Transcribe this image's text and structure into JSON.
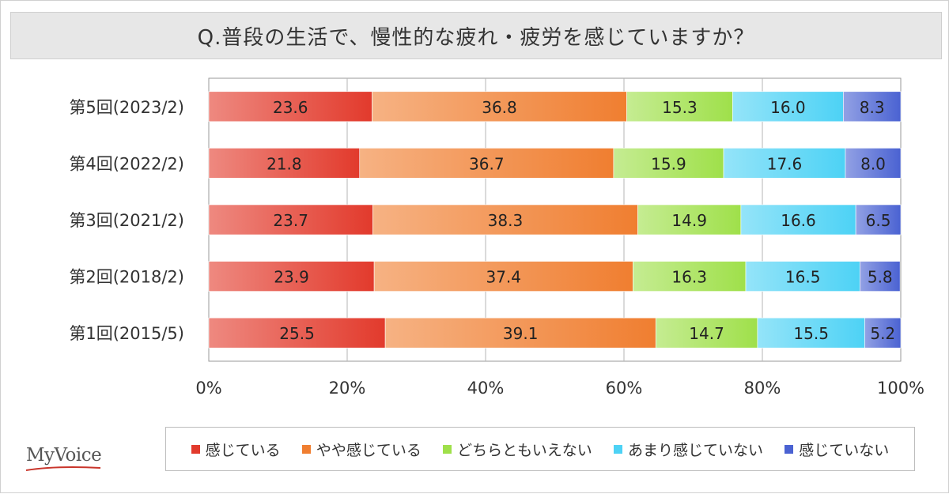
{
  "title": "Q.普段の生活で、慢性的な疲れ・疲労を感じていますか？",
  "logo_text": "MyVoice",
  "chart_data": {
    "type": "bar",
    "orientation": "horizontal",
    "stacked": "percent",
    "categories": [
      "第5回(2023/2)",
      "第4回(2022/2)",
      "第3回(2021/2)",
      "第2回(2018/2)",
      "第1回(2015/5)"
    ],
    "series": [
      {
        "name": "感じている",
        "color": "#e23a2c",
        "values": [
          23.6,
          21.8,
          23.7,
          23.9,
          25.5
        ]
      },
      {
        "name": "やや感じている",
        "color": "#f07e30",
        "values": [
          36.8,
          36.7,
          38.3,
          37.4,
          39.1
        ]
      },
      {
        "name": "どちらともいえない",
        "color": "#9fe04a",
        "values": [
          15.3,
          15.9,
          14.9,
          16.3,
          14.7
        ]
      },
      {
        "name": "あまり感じていない",
        "color": "#4dd2f5",
        "values": [
          16.0,
          17.6,
          16.6,
          16.5,
          15.5
        ]
      },
      {
        "name": "感じていない",
        "color": "#4a62d2",
        "values": [
          8.3,
          8.0,
          6.5,
          5.8,
          5.2
        ]
      }
    ],
    "xlim": [
      0,
      100
    ],
    "x_ticks": [
      "0%",
      "20%",
      "40%",
      "60%",
      "80%",
      "100%"
    ],
    "grid": true,
    "legend_position": "bottom"
  }
}
